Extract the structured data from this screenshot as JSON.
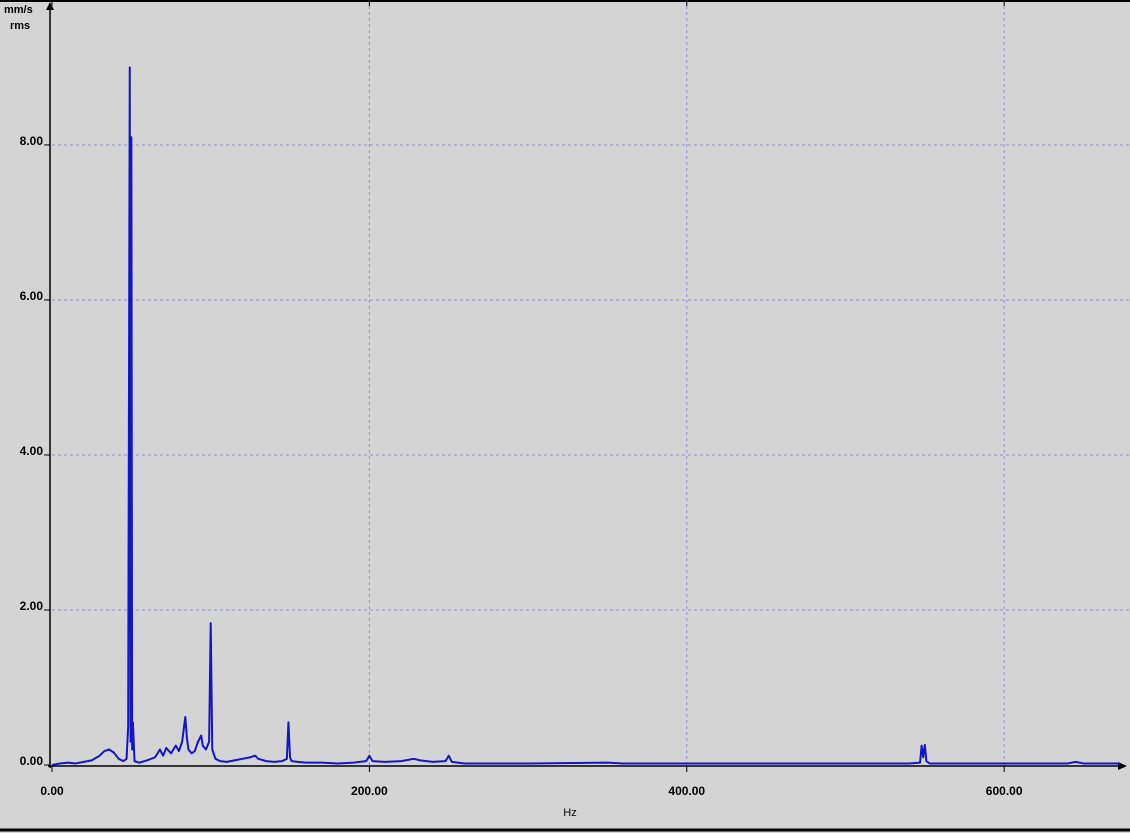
{
  "chart_data": {
    "type": "line",
    "ylabel": [
      "mm/s",
      "rms"
    ],
    "xlabel": "Hz",
    "color": "#1414c8",
    "grid": true,
    "xlim": [
      0,
      673
    ],
    "ylim": [
      0,
      9.87
    ],
    "xticks": [
      {
        "value": 0,
        "label": "0.00"
      },
      {
        "value": 200,
        "label": "200.00"
      },
      {
        "value": 400,
        "label": "400.00"
      },
      {
        "value": 600,
        "label": "600.00"
      }
    ],
    "yticks": [
      {
        "value": 0,
        "label": "0.00"
      },
      {
        "value": 2,
        "label": "2.00"
      },
      {
        "value": 4,
        "label": "4.00"
      },
      {
        "value": 6,
        "label": "6.00"
      },
      {
        "value": 8,
        "label": "8.00"
      }
    ],
    "x": [
      0,
      5,
      10,
      15,
      20,
      25,
      30,
      33,
      36,
      39,
      42,
      45,
      47,
      48,
      49,
      49.5,
      50,
      50.5,
      51,
      52,
      55,
      60,
      65,
      68,
      70,
      72,
      75,
      78,
      80,
      82,
      84,
      85,
      86,
      88,
      90,
      92,
      94,
      95,
      97,
      99,
      100,
      101,
      103,
      106,
      110,
      115,
      120,
      125,
      128,
      130,
      135,
      140,
      145,
      148,
      149,
      150,
      151,
      155,
      160,
      170,
      180,
      190,
      198,
      200,
      202,
      210,
      220,
      228,
      232,
      240,
      248,
      250,
      252,
      260,
      300,
      350,
      360,
      400,
      450,
      500,
      540,
      547,
      548,
      549,
      550,
      551,
      553,
      560,
      600,
      640,
      645,
      650,
      673
    ],
    "values": [
      0,
      0.02,
      0.03,
      0.02,
      0.04,
      0.06,
      0.12,
      0.18,
      0.2,
      0.16,
      0.08,
      0.05,
      0.08,
      0.5,
      9,
      0.3,
      8.1,
      0.2,
      0.55,
      0.05,
      0.03,
      0.06,
      0.1,
      0.2,
      0.12,
      0.22,
      0.15,
      0.25,
      0.18,
      0.3,
      0.62,
      0.35,
      0.2,
      0.15,
      0.18,
      0.3,
      0.38,
      0.25,
      0.2,
      0.3,
      1.83,
      0.2,
      0.08,
      0.05,
      0.04,
      0.06,
      0.08,
      0.1,
      0.12,
      0.08,
      0.05,
      0.04,
      0.05,
      0.08,
      0.55,
      0.1,
      0.05,
      0.04,
      0.03,
      0.03,
      0.02,
      0.03,
      0.05,
      0.12,
      0.05,
      0.04,
      0.05,
      0.08,
      0.06,
      0.04,
      0.05,
      0.12,
      0.04,
      0.02,
      0.02,
      0.03,
      0.02,
      0.02,
      0.02,
      0.02,
      0.02,
      0.03,
      0.25,
      0.1,
      0.26,
      0.05,
      0.02,
      0.02,
      0.02,
      0.02,
      0.04,
      0.02,
      0.02
    ]
  }
}
